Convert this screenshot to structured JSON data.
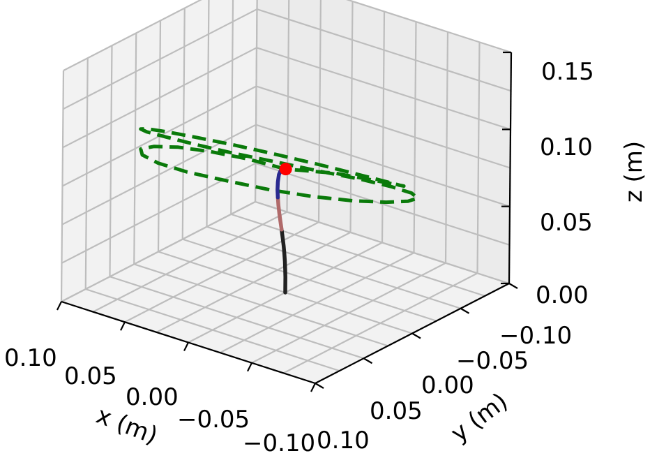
{
  "chart_data": {
    "type": "line3d",
    "title": "",
    "xlabel": "x (m)",
    "ylabel": "y (m)",
    "zlabel": "z (m)",
    "xlim": [
      -0.1,
      0.1
    ],
    "ylim": [
      -0.1,
      0.1
    ],
    "zlim": [
      0.0,
      0.15
    ],
    "grid": true,
    "x_ticks": [
      "0.10",
      "0.05",
      "0.00",
      "−0.05",
      "−0.10"
    ],
    "y_ticks": [
      "−0.10",
      "−0.05",
      "0.00",
      "0.05",
      "0.10"
    ],
    "z_ticks": [
      "0.00",
      "0.05",
      "0.10",
      "0.15"
    ],
    "series": [
      {
        "style": "dashed",
        "color": "#0a7a0a",
        "points": [
          [
            0.0005,
            0.0,
            0.08
          ],
          [
            0.018,
            -0.017,
            0.0875
          ],
          [
            0.034,
            -0.034,
            0.0935
          ],
          [
            0.048,
            -0.049,
            0.0975
          ],
          [
            0.058,
            -0.061,
            0.0992
          ],
          [
            0.063,
            -0.068,
            0.0985
          ],
          [
            0.061,
            -0.069,
            0.0955
          ],
          [
            0.053,
            -0.063,
            0.0904
          ],
          [
            0.04,
            -0.05,
            0.0838
          ],
          [
            0.023,
            -0.031,
            0.0764
          ],
          [
            0.004,
            -0.011,
            0.0691
          ],
          [
            -0.014,
            0.01,
            0.0627
          ],
          [
            -0.03,
            0.03,
            0.0578
          ],
          [
            -0.043,
            0.047,
            0.0548
          ],
          [
            -0.051,
            0.059,
            0.0537
          ],
          [
            -0.054,
            0.065,
            0.0545
          ],
          [
            -0.05,
            0.064,
            0.0571
          ],
          [
            -0.04,
            0.056,
            0.0612
          ],
          [
            -0.025,
            0.043,
            0.0664
          ],
          [
            -0.007,
            0.025,
            0.0725
          ],
          [
            0.012,
            0.006,
            0.0795
          ],
          [
            0.03,
            -0.014,
            0.0868
          ],
          [
            0.046,
            -0.032,
            0.094
          ],
          [
            0.059,
            -0.047,
            0.1005
          ],
          [
            0.066,
            -0.058,
            0.1056
          ],
          [
            0.067,
            -0.063,
            0.1088
          ],
          [
            0.063,
            -0.062,
            0.1097
          ],
          [
            0.053,
            -0.055,
            0.1082
          ],
          [
            0.039,
            -0.043,
            0.1044
          ],
          [
            0.021,
            -0.026,
            0.0985
          ],
          [
            0.002,
            -0.007,
            0.0912
          ],
          [
            -0.016,
            0.012,
            0.0835
          ],
          [
            -0.032,
            0.029,
            0.0762
          ],
          [
            -0.044,
            0.043,
            0.0701
          ],
          [
            -0.05,
            0.052,
            0.066
          ],
          [
            -0.05,
            0.056,
            0.0642
          ],
          [
            -0.043,
            0.053,
            0.0648
          ],
          [
            -0.031,
            0.044,
            0.0675
          ],
          [
            -0.015,
            0.03,
            0.0718
          ],
          [
            0.0005,
            0.0,
            0.08
          ]
        ]
      },
      {
        "style": "solid",
        "color": "#222222",
        "points": [
          [
            0.0,
            0.0,
            0.0
          ],
          [
            0.0,
            0.0,
            0.005
          ],
          [
            0.0,
            0.0,
            0.01
          ],
          [
            0.0002,
            0.0,
            0.015
          ],
          [
            0.0005,
            0.0,
            0.02
          ],
          [
            0.001,
            0.0,
            0.025
          ],
          [
            0.0016,
            0.0,
            0.03
          ],
          [
            0.0024,
            0.0,
            0.035
          ],
          [
            0.0033,
            0.0,
            0.04
          ]
        ]
      },
      {
        "style": "solid",
        "color": "#b06a6a",
        "points": [
          [
            0.0033,
            0.0,
            0.04
          ],
          [
            0.0043,
            0.0,
            0.045
          ],
          [
            0.0052,
            0.0,
            0.05
          ],
          [
            0.006,
            0.0,
            0.055
          ],
          [
            0.0065,
            0.0,
            0.06
          ]
        ]
      },
      {
        "style": "solid",
        "color": "#2a2a90",
        "points": [
          [
            0.0065,
            0.0,
            0.06
          ],
          [
            0.0068,
            0.0,
            0.065
          ],
          [
            0.0066,
            0.0,
            0.07
          ],
          [
            0.0058,
            0.0,
            0.075
          ],
          [
            0.004,
            0.0,
            0.079
          ],
          [
            0.0005,
            0.0,
            0.08
          ]
        ]
      }
    ],
    "markers": [
      {
        "color": "#ff0000",
        "point": [
          0.0005,
          0.0,
          0.08
        ]
      }
    ]
  }
}
